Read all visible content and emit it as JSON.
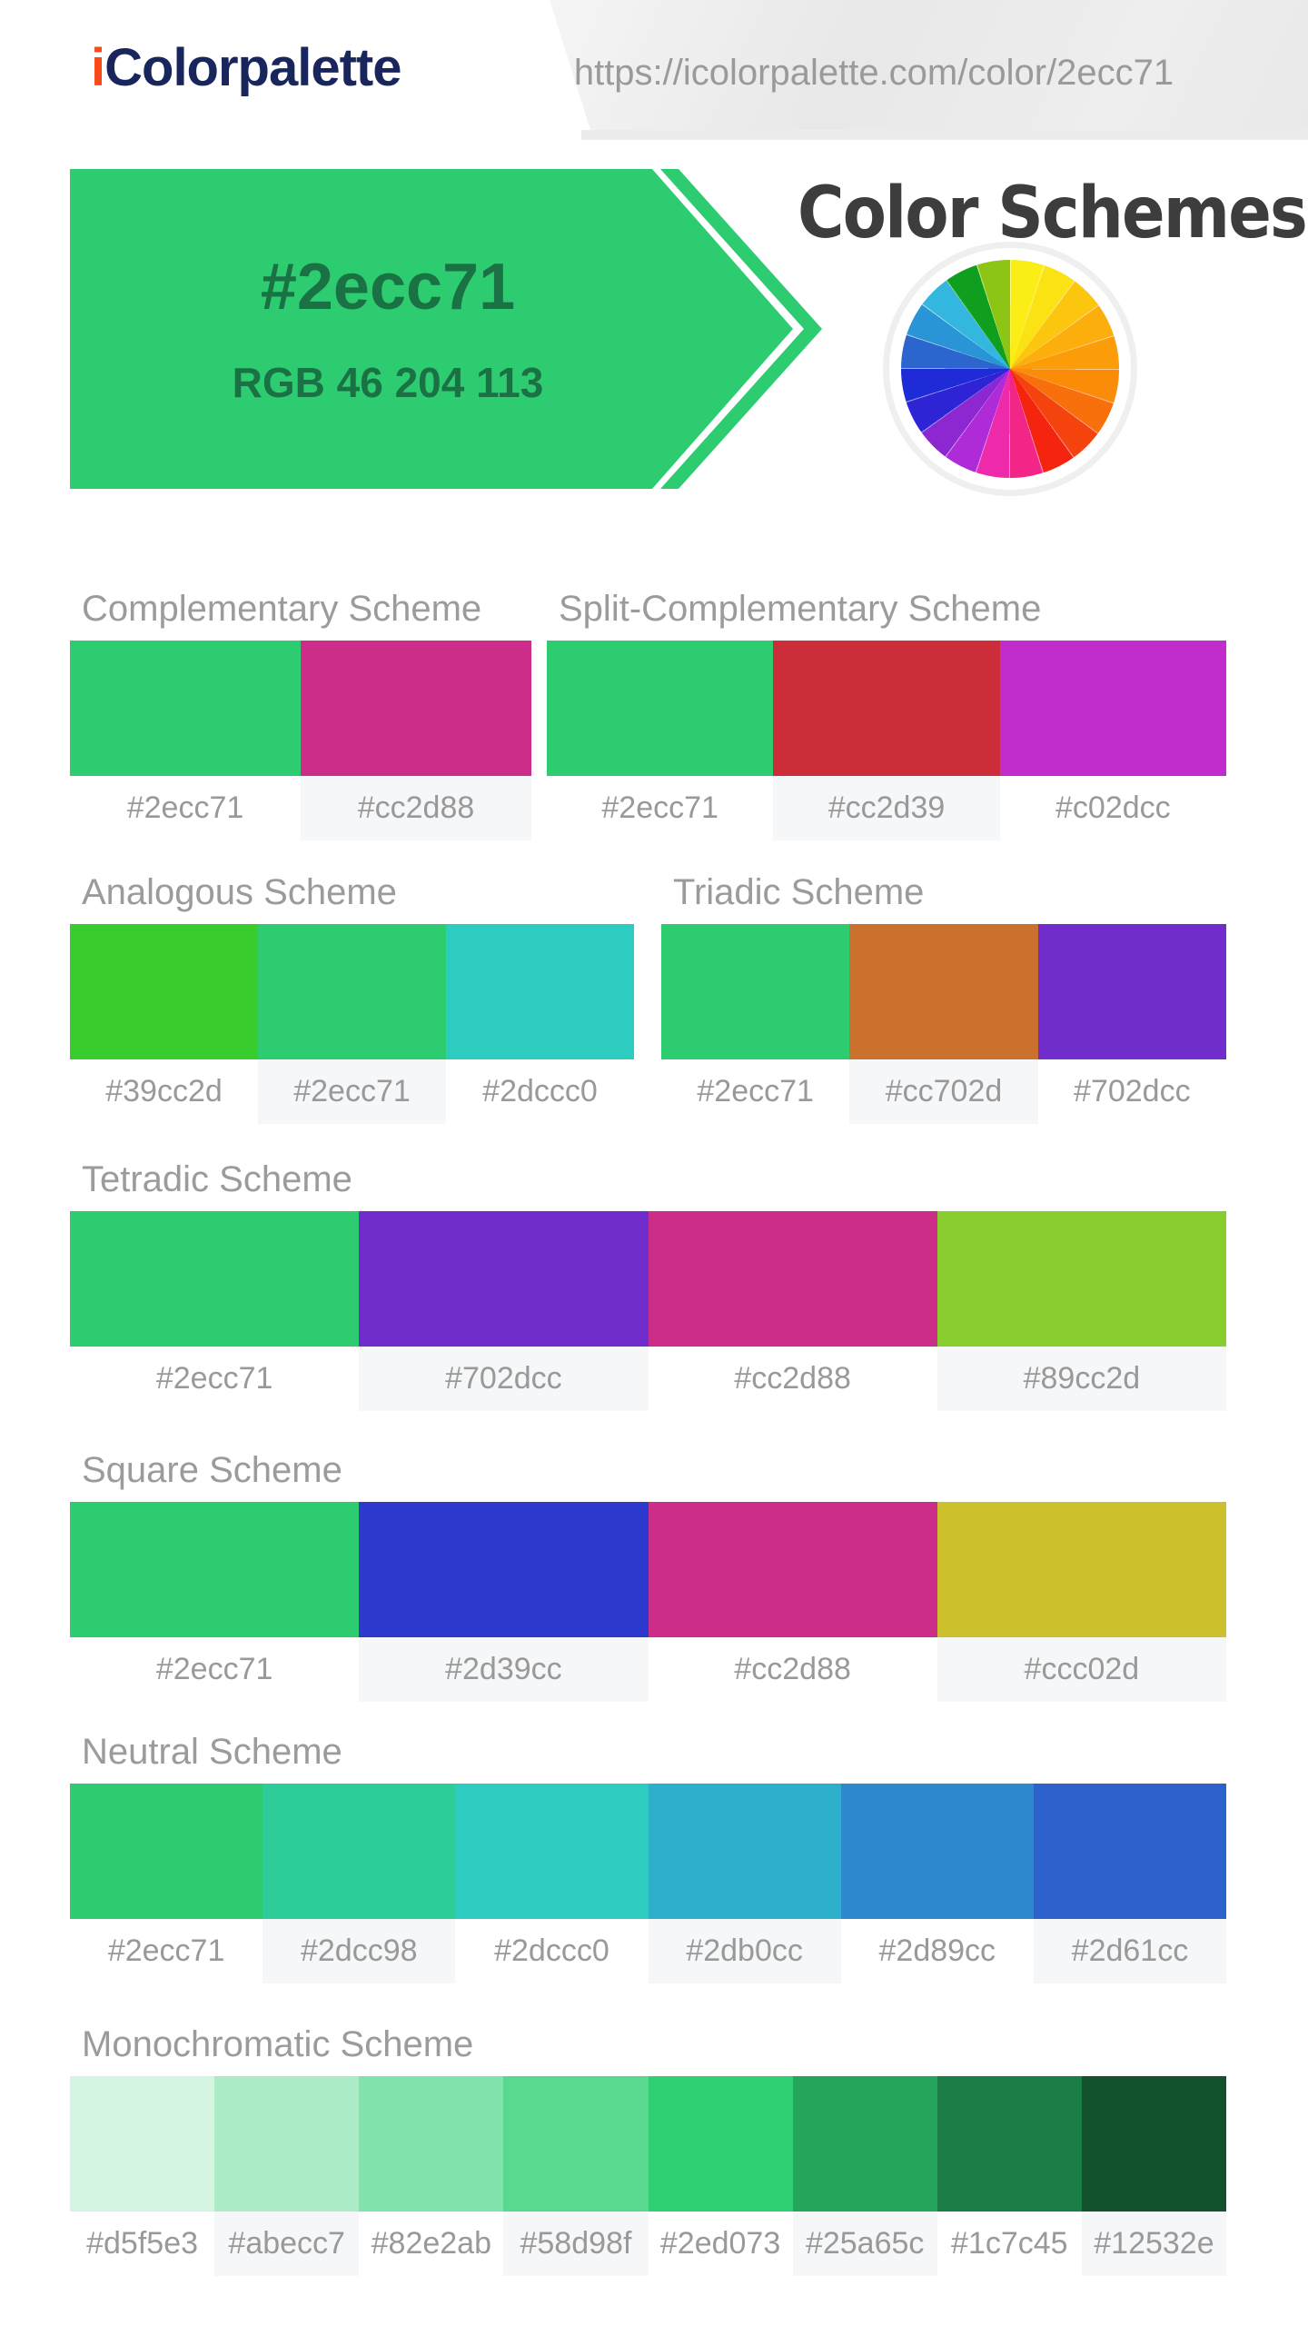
{
  "header": {
    "logo_prefix": "i",
    "logo_text": "Colorpalette",
    "logo_color": "#19265e",
    "logo_accent_color": "#fa4a18",
    "url": "https://icolorpalette.com/color/2ecc71"
  },
  "banner": {
    "hex": "#2ecc71",
    "rgb": "RGB 46 204 113",
    "background": "#2ecc71",
    "text_color": "#1a7244"
  },
  "page_title": "Color Schemes",
  "color_wheel": {
    "segments": [
      "#fbee16",
      "#fbe313",
      "#fcc60e",
      "#fbae0c",
      "#fb9c09",
      "#fb8c08",
      "#f8700b",
      "#f5430d",
      "#f4240e",
      "#f32586",
      "#ee2aaa",
      "#b02bd8",
      "#8d27d1",
      "#2f23d6",
      "#202bd8",
      "#2b66cf",
      "#2994d6",
      "#33b7de",
      "#0f9e1d",
      "#8cc514"
    ]
  },
  "schemes": [
    {
      "title": "Complementary Scheme",
      "colors": [
        "#2ecc71",
        "#cc2d88"
      ]
    },
    {
      "title": "Split-Complementary Scheme",
      "colors": [
        "#2ecc71",
        "#cc2d39",
        "#c02dcc"
      ]
    },
    {
      "title": "Analogous Scheme",
      "colors": [
        "#39cc2d",
        "#2ecc71",
        "#2dccc0"
      ]
    },
    {
      "title": "Triadic Scheme",
      "colors": [
        "#2ecc71",
        "#cc702d",
        "#702dcc"
      ]
    },
    {
      "title": "Tetradic Scheme",
      "colors": [
        "#2ecc71",
        "#702dcc",
        "#cc2d88",
        "#89cc2d"
      ]
    },
    {
      "title": "Square Scheme",
      "colors": [
        "#2ecc71",
        "#2d39cc",
        "#cc2d88",
        "#ccc02d"
      ]
    },
    {
      "title": "Neutral Scheme",
      "colors": [
        "#2ecc71",
        "#2dcc98",
        "#2dccc0",
        "#2db0cc",
        "#2d89cc",
        "#2d61cc"
      ]
    },
    {
      "title": "Monochromatic Scheme",
      "colors": [
        "#d5f5e3",
        "#abecc7",
        "#82e2ab",
        "#58d98f",
        "#2ed073",
        "#25a65c",
        "#1c7c45",
        "#12532e"
      ]
    }
  ]
}
